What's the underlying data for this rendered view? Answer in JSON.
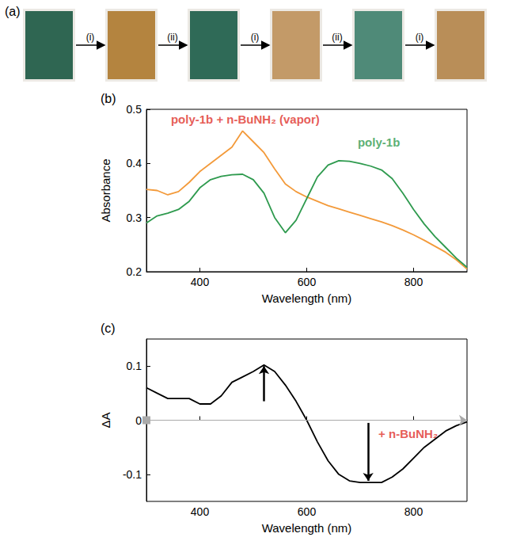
{
  "photo_panel": {
    "panel_label": "(a)",
    "steps": [
      "(i)",
      "(ii)",
      "(i)",
      "(ii)",
      "(i)"
    ],
    "colors": [
      "#2f6652",
      "#b4843f",
      "#2f6a57",
      "#c39a68",
      "#4f8a78",
      "#b98e58"
    ]
  },
  "chart_data": [
    {
      "type": "line",
      "panel_label": "(b)",
      "x_label": "Wavelength (nm)",
      "y_label": "Absorbance",
      "x": [
        300,
        320,
        340,
        360,
        380,
        400,
        420,
        440,
        460,
        480,
        500,
        520,
        540,
        560,
        580,
        600,
        620,
        640,
        660,
        680,
        700,
        720,
        740,
        760,
        780,
        800,
        820,
        840,
        860,
        880,
        900
      ],
      "series": [
        {
          "name": "poly-1b + n-BuNH₂ (vapor)",
          "color": "#f39a3a",
          "values": [
            0.352,
            0.35,
            0.342,
            0.348,
            0.365,
            0.385,
            0.4,
            0.415,
            0.43,
            0.46,
            0.44,
            0.42,
            0.39,
            0.362,
            0.348,
            0.338,
            0.33,
            0.322,
            0.316,
            0.31,
            0.304,
            0.298,
            0.292,
            0.285,
            0.277,
            0.268,
            0.258,
            0.247,
            0.236,
            0.222,
            0.205
          ]
        },
        {
          "name": "poly-1b",
          "color": "#2e9a4e",
          "values": [
            0.29,
            0.303,
            0.308,
            0.315,
            0.33,
            0.355,
            0.37,
            0.376,
            0.379,
            0.38,
            0.37,
            0.345,
            0.3,
            0.272,
            0.295,
            0.335,
            0.375,
            0.397,
            0.405,
            0.404,
            0.4,
            0.395,
            0.388,
            0.372,
            0.345,
            0.315,
            0.288,
            0.265,
            0.245,
            0.225,
            0.208
          ]
        }
      ],
      "annotations": [
        {
          "text": "poly-1b + n-BuNH₂ (vapor)",
          "x": 485,
          "y": 0.482,
          "color": "#e0302a"
        },
        {
          "text": "poly-1b",
          "x": 735,
          "y": 0.44,
          "color": "#2e9a4e"
        }
      ],
      "xlim": [
        300,
        900
      ],
      "xticks": [
        400,
        600,
        800
      ],
      "ylim": [
        0.2,
        0.5
      ],
      "yticks": [
        0.2,
        0.3,
        0.4,
        0.5
      ],
      "grid": false
    },
    {
      "type": "line",
      "panel_label": "(c)",
      "x_label": "Wavelength (nm)",
      "y_label": "ΔA",
      "x": [
        300,
        320,
        340,
        360,
        380,
        400,
        420,
        440,
        460,
        480,
        500,
        520,
        540,
        560,
        580,
        600,
        620,
        640,
        660,
        680,
        700,
        720,
        740,
        760,
        780,
        800,
        820,
        840,
        860,
        880,
        900
      ],
      "series": [
        {
          "name": "ΔA",
          "color": "#000000",
          "values": [
            0.06,
            0.05,
            0.04,
            0.04,
            0.04,
            0.03,
            0.03,
            0.045,
            0.07,
            0.08,
            0.09,
            0.102,
            0.09,
            0.065,
            0.035,
            0,
            -0.04,
            -0.075,
            -0.1,
            -0.112,
            -0.115,
            -0.115,
            -0.115,
            -0.105,
            -0.09,
            -0.07,
            -0.05,
            -0.035,
            -0.02,
            -0.01,
            -0.003
          ]
        }
      ],
      "reference_line": 0,
      "arrows": [
        {
          "x": 520,
          "from": 0.035,
          "to": 0.1
        },
        {
          "x": 715,
          "from": -0.005,
          "to": -0.112
        }
      ],
      "annotations": [
        {
          "text": "+ n-BuNH₂",
          "x": 790,
          "y": -0.025,
          "color": "#e0302a"
        }
      ],
      "xlim": [
        300,
        900
      ],
      "xticks": [
        400,
        600,
        800
      ],
      "ylim": [
        -0.15,
        0.15
      ],
      "yticks": [
        -0.1,
        0,
        0.1
      ],
      "grid": false
    }
  ]
}
